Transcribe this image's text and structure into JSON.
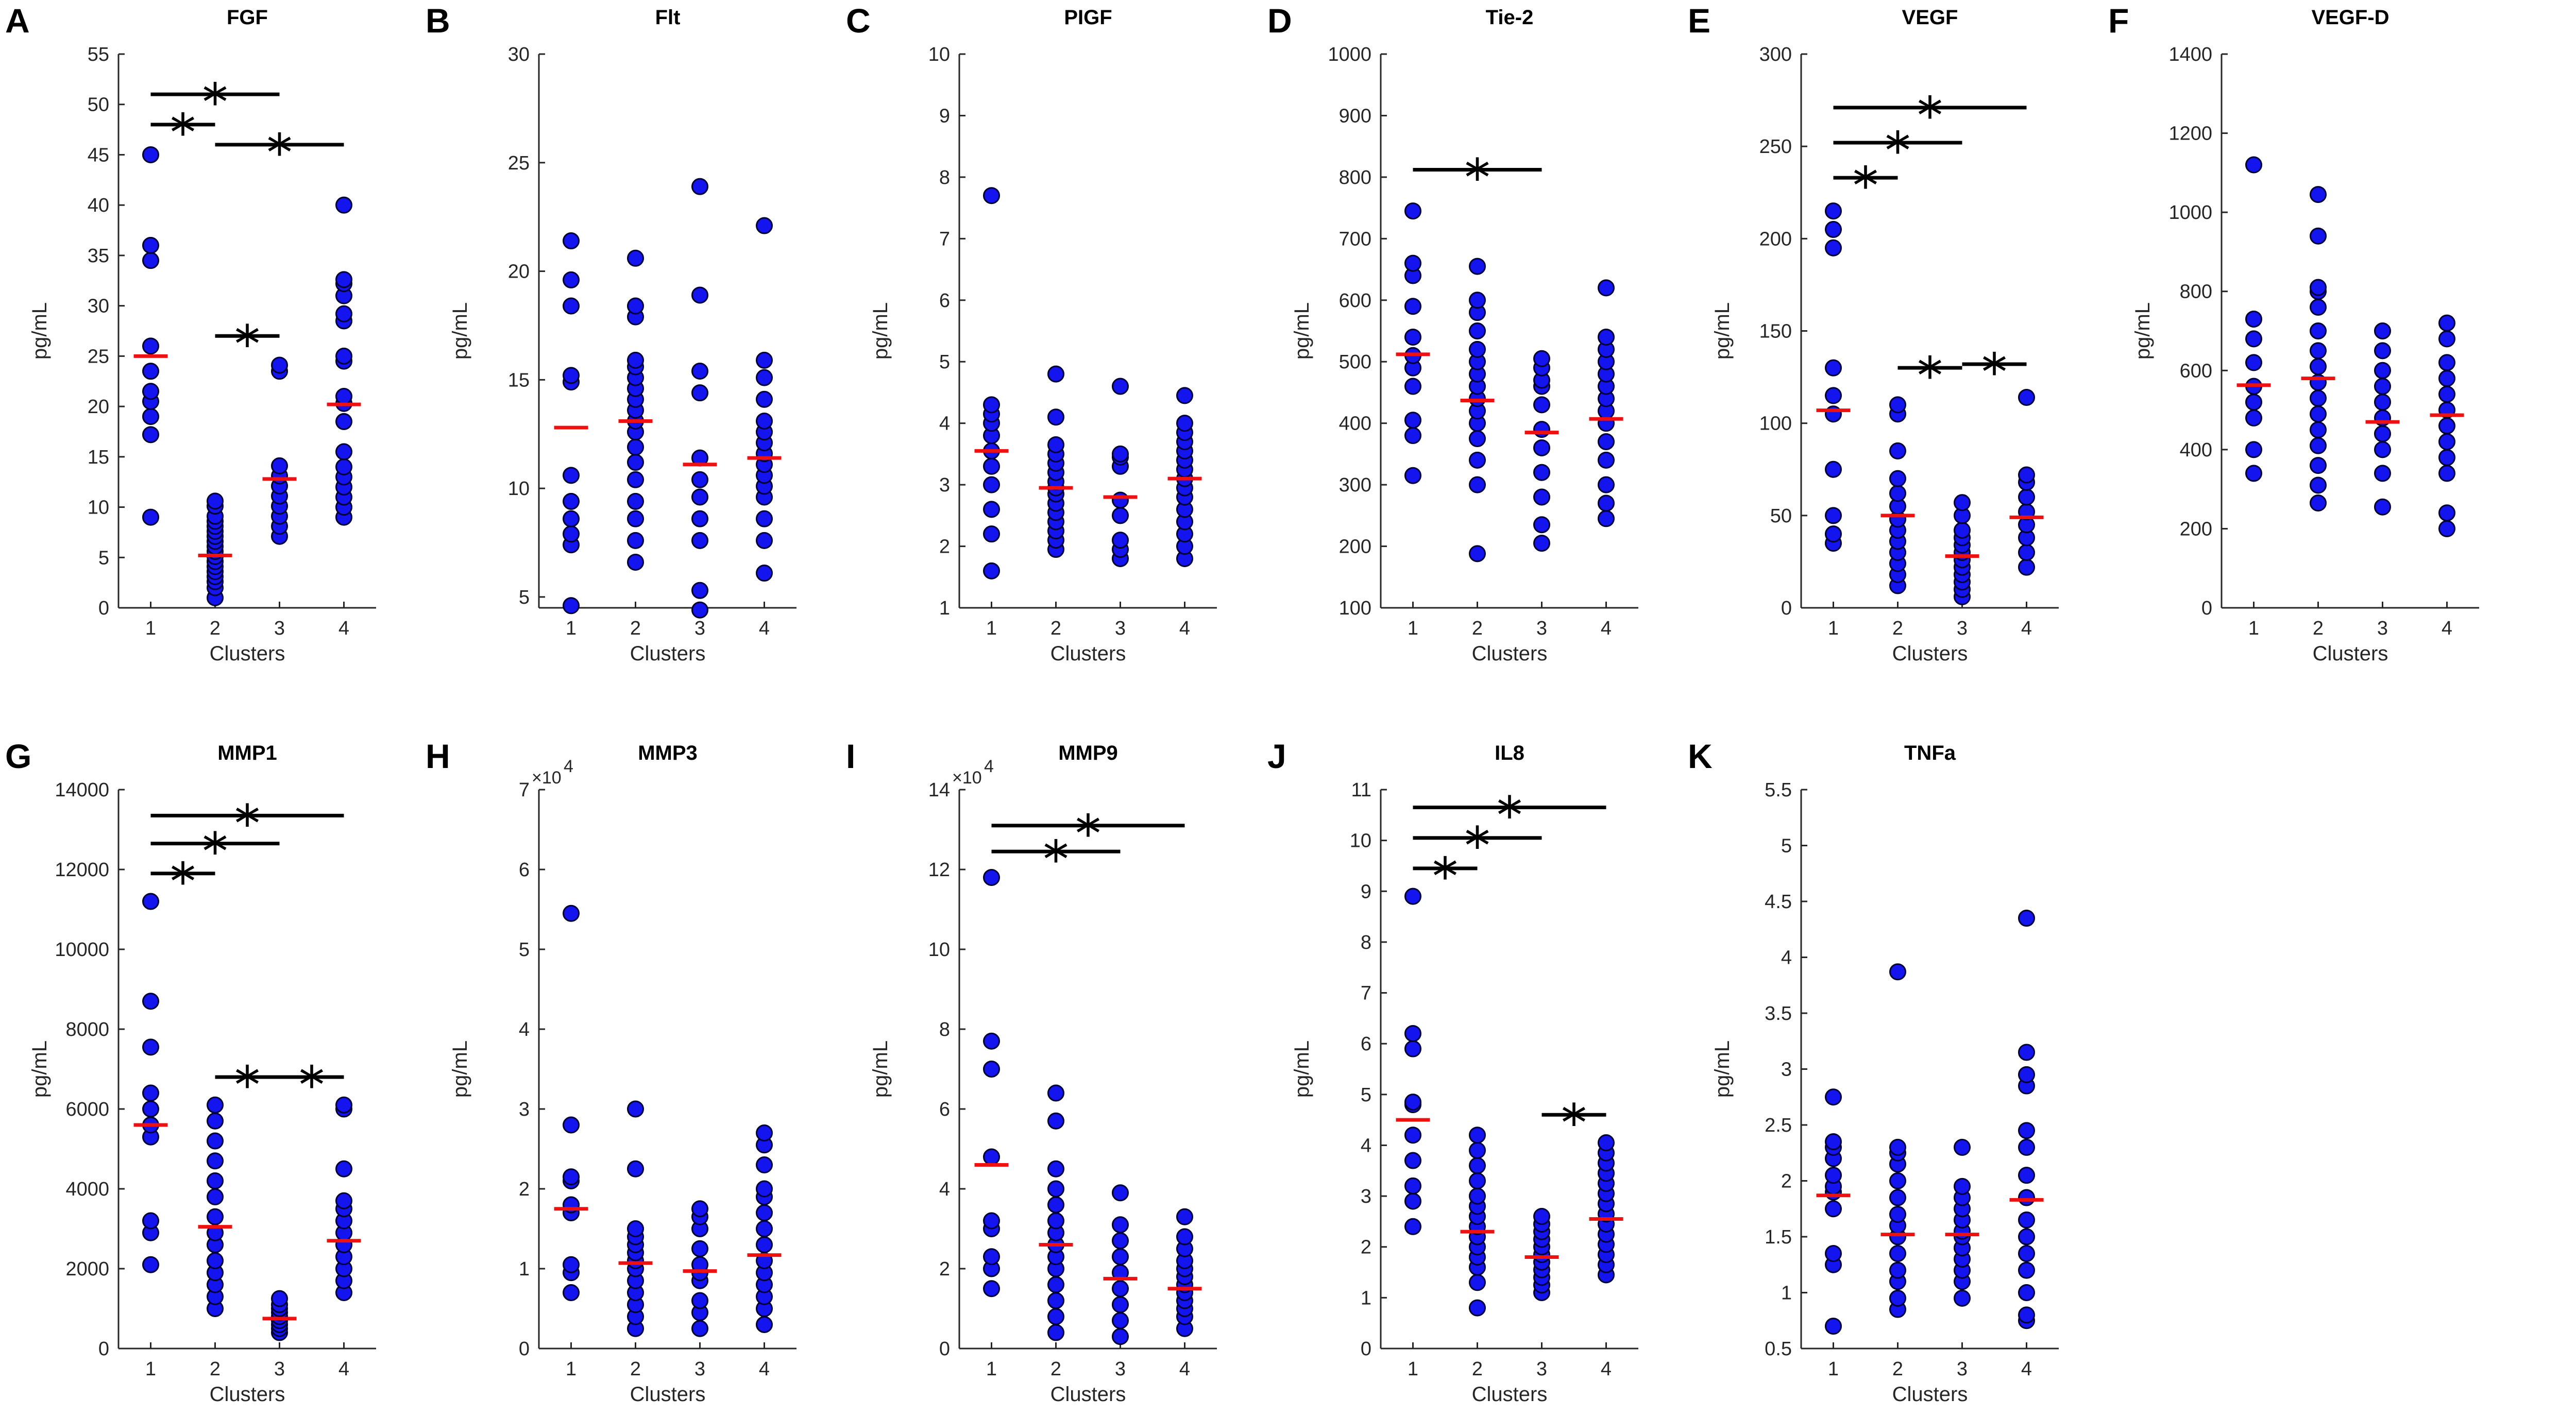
{
  "figure": {
    "colors": {
      "point": "#1414ee",
      "point_edge": "#000033",
      "median": "#ee1111",
      "axis": "#262626",
      "bracket": "#000000"
    },
    "xlabel": "Clusters",
    "categories": [
      "1",
      "2",
      "3",
      "4"
    ]
  },
  "chart_data": [
    {
      "type": "scatter",
      "letter": "A",
      "title": "FGF",
      "ylabel": "pg/mL",
      "xlabel": "Clusters",
      "x": [
        1,
        2,
        3,
        4
      ],
      "ylim": [
        0,
        55
      ],
      "yticks": [
        0,
        5,
        10,
        15,
        20,
        25,
        30,
        35,
        40,
        45,
        50,
        55
      ],
      "ytick_labels": [
        "0",
        "5",
        "10",
        "15",
        "20",
        "25",
        "30",
        "35",
        "40",
        "45",
        "50",
        "55"
      ],
      "medians": [
        25,
        5.2,
        12.8,
        20.2
      ],
      "points": [
        [
          9,
          17.2,
          19,
          20.5,
          21.5,
          23.5,
          26,
          34.5,
          36,
          45
        ],
        [
          1,
          2,
          2.6,
          3.1,
          3.6,
          4.1,
          4.6,
          5.1,
          5.6,
          6.1,
          6.6,
          7.1,
          7.6,
          8.1,
          8.6,
          9.1,
          10.1,
          10.6
        ],
        [
          7.1,
          8.1,
          9.1,
          10.1,
          11.1,
          12.1,
          13.1,
          14.1,
          23.5,
          24.1
        ],
        [
          9,
          10,
          11,
          12,
          13,
          14,
          15.5,
          18.5,
          20.3,
          21,
          24.5,
          25,
          28.5,
          29.2,
          31,
          32.2,
          32.6,
          40
        ]
      ],
      "brackets": [
        {
          "from": 1,
          "to": 3,
          "y": 51,
          "label": "*"
        },
        {
          "from": 1,
          "to": 2,
          "y": 48,
          "label": "*"
        },
        {
          "from": 2,
          "to": 4,
          "y": 46,
          "label": "*"
        },
        {
          "from": 2,
          "to": 3,
          "y": 27,
          "label": "*"
        }
      ]
    },
    {
      "type": "scatter",
      "letter": "B",
      "title": "Flt",
      "ylabel": "pg/mL",
      "xlabel": "Clusters",
      "x": [
        1,
        2,
        3,
        4
      ],
      "ylim": [
        4.5,
        30
      ],
      "yticks": [
        5,
        10,
        15,
        20,
        25,
        30
      ],
      "ytick_labels": [
        "5",
        "10",
        "15",
        "20",
        "25",
        "30"
      ],
      "medians": [
        12.8,
        13.1,
        11.1,
        11.4
      ],
      "points": [
        [
          4.6,
          7.4,
          7.9,
          8.6,
          9.4,
          10.6,
          14.9,
          15.2,
          18.4,
          19.6,
          21.4
        ],
        [
          6.6,
          7.6,
          8.6,
          9.4,
          10.4,
          11.2,
          11.9,
          12.6,
          13.1,
          13.6,
          14.1,
          14.6,
          15.1,
          15.6,
          15.9,
          17.9,
          18.4,
          20.6
        ],
        [
          4.4,
          5.3,
          7.6,
          8.6,
          9.6,
          10.4,
          11.4,
          14.4,
          15.4,
          18.9,
          23.9
        ],
        [
          6.1,
          7.6,
          8.6,
          9.6,
          10.1,
          10.6,
          11.1,
          11.6,
          12.1,
          12.6,
          13.1,
          14.1,
          15.1,
          15.9,
          22.1
        ]
      ],
      "brackets": []
    },
    {
      "type": "scatter",
      "letter": "C",
      "title": "PIGF",
      "ylabel": "pg/mL",
      "xlabel": "Clusters",
      "x": [
        1,
        2,
        3,
        4
      ],
      "ylim": [
        1,
        10
      ],
      "yticks": [
        1,
        2,
        3,
        4,
        5,
        6,
        7,
        8,
        9,
        10
      ],
      "ytick_labels": [
        "1",
        "2",
        "3",
        "4",
        "5",
        "6",
        "7",
        "8",
        "9",
        "10"
      ],
      "medians": [
        3.55,
        2.95,
        2.8,
        3.1
      ],
      "points": [
        [
          1.6,
          2.2,
          2.6,
          3.0,
          3.3,
          3.55,
          3.8,
          4.0,
          4.15,
          4.3,
          7.7
        ],
        [
          1.95,
          2.1,
          2.25,
          2.4,
          2.55,
          2.7,
          2.85,
          2.95,
          3.05,
          3.2,
          3.35,
          3.5,
          3.65,
          4.1,
          4.8
        ],
        [
          1.8,
          1.95,
          2.1,
          2.5,
          2.75,
          3.3,
          3.45,
          3.5,
          4.6
        ],
        [
          1.8,
          2.0,
          2.2,
          2.4,
          2.6,
          2.8,
          2.95,
          3.1,
          3.25,
          3.4,
          3.55,
          3.7,
          3.85,
          4.0,
          4.45
        ]
      ],
      "brackets": []
    },
    {
      "type": "scatter",
      "letter": "D",
      "title": "Tie-2",
      "ylabel": "pg/mL",
      "xlabel": "Clusters",
      "x": [
        1,
        2,
        3,
        4
      ],
      "ylim": [
        100,
        1000
      ],
      "yticks": [
        100,
        200,
        300,
        400,
        500,
        600,
        700,
        800,
        900,
        1000
      ],
      "ytick_labels": [
        "100",
        "200",
        "300",
        "400",
        "500",
        "600",
        "700",
        "800",
        "900",
        "1000"
      ],
      "medians": [
        512,
        437,
        385,
        407
      ],
      "points": [
        [
          315,
          380,
          405,
          460,
          490,
          510,
          540,
          590,
          640,
          660,
          745
        ],
        [
          188,
          300,
          340,
          375,
          400,
          420,
          440,
          460,
          480,
          500,
          520,
          550,
          580,
          600,
          655
        ],
        [
          205,
          235,
          280,
          320,
          360,
          390,
          430,
          460,
          470,
          490,
          505
        ],
        [
          245,
          270,
          300,
          340,
          370,
          400,
          420,
          440,
          460,
          480,
          500,
          520,
          540,
          620
        ]
      ],
      "brackets": [
        {
          "from": 1,
          "to": 3,
          "y": 812,
          "label": "*"
        }
      ]
    },
    {
      "type": "scatter",
      "letter": "E",
      "title": "VEGF",
      "ylabel": "pg/mL",
      "xlabel": "Clusters",
      "x": [
        1,
        2,
        3,
        4
      ],
      "ylim": [
        0,
        300
      ],
      "yticks": [
        0,
        50,
        100,
        150,
        200,
        250,
        300
      ],
      "ytick_labels": [
        "0",
        "50",
        "100",
        "150",
        "200",
        "250",
        "300"
      ],
      "medians": [
        107,
        50,
        28,
        49
      ],
      "points": [
        [
          35,
          40,
          50,
          75,
          105,
          115,
          130,
          195,
          205,
          215
        ],
        [
          12,
          18,
          24,
          30,
          36,
          42,
          48,
          55,
          62,
          70,
          85,
          105,
          110
        ],
        [
          6,
          10,
          14,
          18,
          22,
          26,
          30,
          34,
          38,
          42,
          50,
          57
        ],
        [
          22,
          30,
          38,
          45,
          52,
          60,
          68,
          72,
          114
        ]
      ],
      "brackets": [
        {
          "from": 1,
          "to": 4,
          "y": 271,
          "label": "*"
        },
        {
          "from": 1,
          "to": 3,
          "y": 252,
          "label": "*"
        },
        {
          "from": 1,
          "to": 2,
          "y": 233,
          "label": "*"
        },
        {
          "from": 2,
          "to": 3,
          "y": 130,
          "label": "*"
        },
        {
          "from": 3,
          "to": 4,
          "y": 132,
          "label": "*"
        }
      ]
    },
    {
      "type": "scatter",
      "letter": "F",
      "title": "VEGF-D",
      "ylabel": "pg/mL",
      "xlabel": "Clusters",
      "x": [
        1,
        2,
        3,
        4
      ],
      "ylim": [
        0,
        1400
      ],
      "yticks": [
        0,
        200,
        400,
        600,
        800,
        1000,
        1200,
        1400
      ],
      "ytick_labels": [
        "0",
        "200",
        "400",
        "600",
        "800",
        "1000",
        "1200",
        "1400"
      ],
      "medians": [
        563,
        580,
        470,
        487
      ],
      "points": [
        [
          340,
          400,
          480,
          520,
          560,
          620,
          680,
          730,
          1120
        ],
        [
          265,
          310,
          360,
          410,
          450,
          490,
          530,
          570,
          610,
          650,
          700,
          760,
          800,
          810,
          940,
          1045
        ],
        [
          255,
          340,
          400,
          440,
          480,
          520,
          560,
          600,
          650,
          700
        ],
        [
          200,
          240,
          340,
          380,
          420,
          460,
          500,
          540,
          580,
          620,
          680,
          720
        ]
      ],
      "brackets": []
    },
    {
      "type": "scatter",
      "letter": "G",
      "title": "MMP1",
      "ylabel": "pg/mL",
      "xlabel": "Clusters",
      "x": [
        1,
        2,
        3,
        4
      ],
      "ylim": [
        0,
        14000
      ],
      "yticks": [
        0,
        2000,
        4000,
        6000,
        8000,
        10000,
        12000,
        14000
      ],
      "ytick_labels": [
        "0",
        "2000",
        "4000",
        "6000",
        "8000",
        "10000",
        "12000",
        "14000"
      ],
      "medians": [
        5600,
        3050,
        750,
        2700
      ],
      "points": [
        [
          2100,
          2900,
          3200,
          5300,
          5600,
          6000,
          6400,
          7550,
          8700,
          11200
        ],
        [
          1000,
          1300,
          1600,
          1900,
          2200,
          2600,
          2900,
          3300,
          3800,
          4200,
          4700,
          5200,
          5700,
          6100
        ],
        [
          400,
          500,
          600,
          700,
          800,
          900,
          1000,
          1100,
          1250
        ],
        [
          1400,
          1700,
          2000,
          2300,
          2600,
          2900,
          3200,
          3500,
          3700,
          4500,
          6000,
          6100
        ]
      ],
      "brackets": [
        {
          "from": 1,
          "to": 4,
          "y": 13350,
          "label": "*"
        },
        {
          "from": 1,
          "to": 3,
          "y": 12650,
          "label": "*"
        },
        {
          "from": 1,
          "to": 2,
          "y": 11900,
          "label": "*"
        },
        {
          "from": 2,
          "to": 3,
          "y": 6800,
          "label": "*"
        },
        {
          "from": 3,
          "to": 4,
          "y": 6800,
          "label": "*"
        }
      ]
    },
    {
      "type": "scatter",
      "letter": "H",
      "title": "MMP3",
      "ylabel": "pg/mL",
      "xlabel": "Clusters",
      "x": [
        1,
        2,
        3,
        4
      ],
      "ylim": [
        0,
        7
      ],
      "yscale_label": "×10",
      "yscale_exp": "4",
      "yticks": [
        0,
        1,
        2,
        3,
        4,
        5,
        6,
        7
      ],
      "ytick_labels": [
        "0",
        "1",
        "2",
        "3",
        "4",
        "5",
        "6",
        "7"
      ],
      "medians": [
        1.75,
        1.07,
        0.97,
        1.17
      ],
      "points": [
        [
          0.7,
          0.95,
          1.05,
          1.7,
          1.8,
          2.1,
          2.15,
          2.8,
          5.45
        ],
        [
          0.25,
          0.4,
          0.55,
          0.7,
          0.85,
          1.0,
          1.1,
          1.2,
          1.3,
          1.4,
          1.5,
          2.25,
          3.0
        ],
        [
          0.25,
          0.45,
          0.6,
          0.85,
          0.95,
          1.05,
          1.25,
          1.5,
          1.65,
          1.75
        ],
        [
          0.3,
          0.5,
          0.65,
          0.8,
          0.95,
          1.1,
          1.3,
          1.5,
          1.7,
          1.9,
          2.0,
          2.3,
          2.55,
          2.7
        ]
      ],
      "brackets": []
    },
    {
      "type": "scatter",
      "letter": "I",
      "title": "MMP9",
      "ylabel": "pg/mL",
      "xlabel": "Clusters",
      "x": [
        1,
        2,
        3,
        4
      ],
      "ylim": [
        0,
        14
      ],
      "yscale_label": "×10",
      "yscale_exp": "4",
      "yticks": [
        0,
        2,
        4,
        6,
        8,
        10,
        12,
        14
      ],
      "ytick_labels": [
        "0",
        "2",
        "4",
        "6",
        "8",
        "10",
        "12",
        "14"
      ],
      "medians": [
        4.6,
        2.6,
        1.75,
        1.5
      ],
      "points": [
        [
          1.5,
          2.0,
          2.3,
          3.0,
          3.2,
          4.8,
          7.0,
          7.7,
          11.8
        ],
        [
          0.4,
          0.8,
          1.2,
          1.6,
          2.0,
          2.3,
          2.6,
          2.9,
          3.2,
          3.6,
          4.0,
          4.5,
          5.7,
          6.4
        ],
        [
          0.3,
          0.7,
          1.1,
          1.5,
          1.9,
          2.3,
          2.7,
          3.1,
          3.9
        ],
        [
          0.5,
          0.8,
          1.0,
          1.2,
          1.4,
          1.6,
          1.8,
          2.0,
          2.2,
          2.5,
          2.8,
          3.3
        ]
      ],
      "brackets": [
        {
          "from": 1,
          "to": 4,
          "y": 13.1,
          "label": "*"
        },
        {
          "from": 1,
          "to": 3,
          "y": 12.45,
          "label": "*"
        }
      ]
    },
    {
      "type": "scatter",
      "letter": "J",
      "title": "IL8",
      "ylabel": "pg/mL",
      "xlabel": "Clusters",
      "x": [
        1,
        2,
        3,
        4
      ],
      "ylim": [
        0,
        11
      ],
      "yticks": [
        0,
        1,
        2,
        3,
        4,
        5,
        6,
        7,
        8,
        9,
        10,
        11
      ],
      "ytick_labels": [
        "0",
        "1",
        "2",
        "3",
        "4",
        "5",
        "6",
        "7",
        "8",
        "9",
        "10",
        "11"
      ],
      "medians": [
        4.5,
        2.3,
        1.8,
        2.55
      ],
      "points": [
        [
          2.4,
          2.9,
          3.2,
          3.7,
          4.2,
          4.8,
          4.85,
          5.9,
          6.2,
          8.9
        ],
        [
          0.8,
          1.3,
          1.6,
          1.8,
          2.0,
          2.2,
          2.4,
          2.6,
          2.8,
          3.0,
          3.3,
          3.6,
          3.9,
          4.2
        ],
        [
          1.1,
          1.25,
          1.4,
          1.55,
          1.7,
          1.85,
          2.0,
          2.15,
          2.3,
          2.45,
          2.6
        ],
        [
          1.45,
          1.65,
          1.85,
          2.05,
          2.25,
          2.45,
          2.65,
          2.85,
          3.05,
          3.25,
          3.45,
          3.65,
          3.85,
          4.05
        ]
      ],
      "brackets": [
        {
          "from": 1,
          "to": 4,
          "y": 10.65,
          "label": "*"
        },
        {
          "from": 1,
          "to": 3,
          "y": 10.05,
          "label": "*"
        },
        {
          "from": 1,
          "to": 2,
          "y": 9.45,
          "label": "*"
        },
        {
          "from": 3,
          "to": 4,
          "y": 4.6,
          "label": "*"
        }
      ]
    },
    {
      "type": "scatter",
      "letter": "K",
      "title": "TNFa",
      "ylabel": "pg/mL",
      "xlabel": "Clusters",
      "x": [
        1,
        2,
        3,
        4
      ],
      "ylim": [
        0.5,
        5.5
      ],
      "yticks": [
        0.5,
        1,
        1.5,
        2,
        2.5,
        3,
        3.5,
        4,
        4.5,
        5,
        5.5
      ],
      "ytick_labels": [
        "0.5",
        "1",
        "1.5",
        "2",
        "2.5",
        "3",
        "3.5",
        "4",
        "4.5",
        "5",
        "5.5"
      ],
      "medians": [
        1.87,
        1.52,
        1.52,
        1.83
      ],
      "points": [
        [
          0.7,
          1.25,
          1.35,
          1.75,
          1.9,
          1.95,
          2.05,
          2.2,
          2.3,
          2.35,
          2.75
        ],
        [
          0.85,
          0.95,
          1.1,
          1.2,
          1.35,
          1.5,
          1.6,
          1.7,
          1.85,
          2.0,
          2.15,
          2.25,
          2.3,
          3.87
        ],
        [
          0.95,
          1.1,
          1.2,
          1.3,
          1.4,
          1.5,
          1.55,
          1.65,
          1.75,
          1.85,
          1.95,
          2.3
        ],
        [
          0.75,
          0.8,
          1.0,
          1.2,
          1.35,
          1.5,
          1.65,
          1.85,
          2.05,
          2.3,
          2.45,
          2.85,
          2.95,
          3.15,
          4.35
        ]
      ],
      "brackets": []
    }
  ]
}
